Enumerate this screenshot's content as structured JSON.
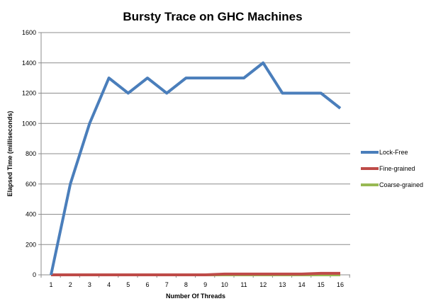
{
  "chart_data": {
    "type": "line",
    "title": "Bursty Trace on GHC Machines",
    "xlabel": "Number Of Threads",
    "ylabel": "Elapsed Time (milliseconds)",
    "categories": [
      "1",
      "2",
      "3",
      "4",
      "5",
      "6",
      "7",
      "8",
      "9",
      "10",
      "11",
      "12",
      "13",
      "14",
      "15",
      "16"
    ],
    "ylim": [
      0,
      1600
    ],
    "yticks": [
      0,
      200,
      400,
      600,
      800,
      1000,
      1200,
      1400,
      1600
    ],
    "grid": true,
    "legend_position": "right",
    "series": [
      {
        "name": "Lock-Free",
        "color": "#4a7ebb",
        "values": [
          0,
          600,
          1000,
          1300,
          1200,
          1300,
          1200,
          1300,
          1300,
          1300,
          1300,
          1400,
          1200,
          1200,
          1200,
          1100
        ]
      },
      {
        "name": "Fine-grained",
        "color": "#be4b48",
        "values": [
          0,
          0,
          0,
          0,
          0,
          0,
          0,
          0,
          0,
          5,
          5,
          5,
          5,
          5,
          10,
          10
        ]
      },
      {
        "name": "Coarse-grained",
        "color": "#98b954",
        "values": [
          0,
          0,
          0,
          0,
          0,
          0,
          0,
          0,
          0,
          0,
          0,
          0,
          0,
          0,
          0,
          0
        ]
      }
    ]
  }
}
